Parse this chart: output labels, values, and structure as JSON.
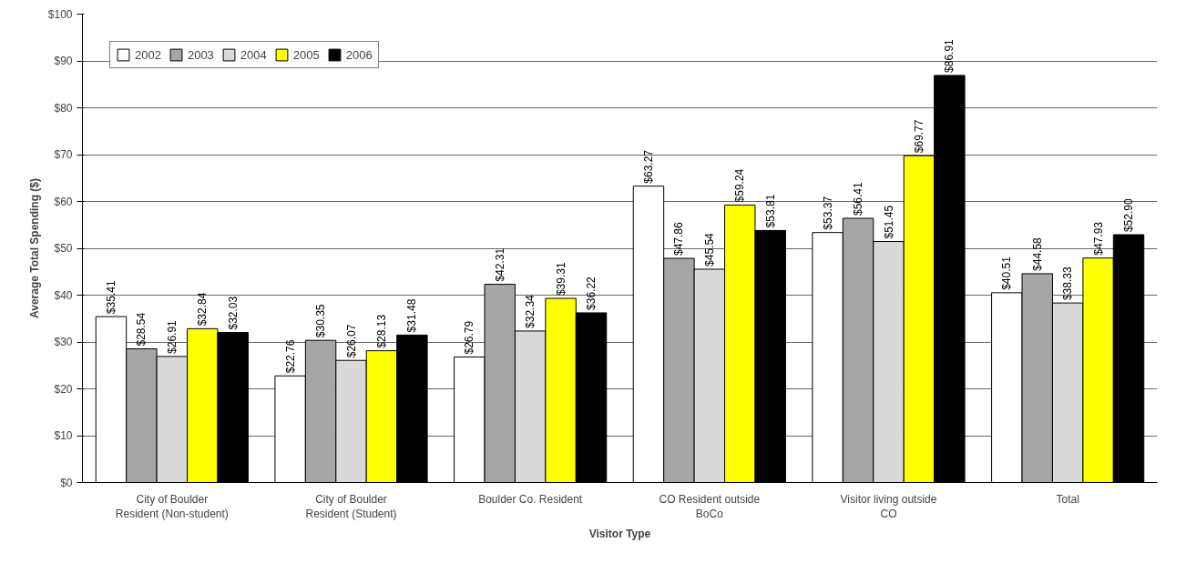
{
  "chart_data": {
    "type": "bar",
    "xlabel": "Visitor Type",
    "ylabel": "Average Total Spending ($)",
    "categories": [
      "City of Boulder Resident (Non-student)",
      "City of Boulder Resident (Student)",
      "Boulder Co. Resident",
      "CO Resident outside BoCo",
      "Visitor living outside CO",
      "Total"
    ],
    "series": [
      {
        "name": "2002",
        "color": "#ffffff",
        "values": [
          35.41,
          22.76,
          26.79,
          63.27,
          53.37,
          40.51
        ],
        "value_labels": [
          "$35.41",
          "$22.76",
          "$26.79",
          "$63.27",
          "$53.37",
          "$40.51"
        ]
      },
      {
        "name": "2003",
        "color": "#a6a6a6",
        "values": [
          28.54,
          30.35,
          42.31,
          47.86,
          56.41,
          44.58
        ],
        "value_labels": [
          "$28.54",
          "$30.35",
          "$42.31",
          "$47.86",
          "$56.41",
          "$44.58"
        ]
      },
      {
        "name": "2004",
        "color": "#d9d9d9",
        "values": [
          26.91,
          26.07,
          32.34,
          45.54,
          51.45,
          38.33
        ],
        "value_labels": [
          "$26.91",
          "$26.07",
          "$32.34",
          "$45.54",
          "$51.45",
          "$38.33"
        ]
      },
      {
        "name": "2005",
        "color": "#ffff00",
        "values": [
          32.84,
          28.13,
          39.31,
          59.24,
          69.77,
          47.93
        ],
        "value_labels": [
          "$32.84",
          "$28.13",
          "$39.31",
          "$59.24",
          "$69.77",
          "$47.93"
        ]
      },
      {
        "name": "2006",
        "color": "#000000",
        "values": [
          32.03,
          31.48,
          36.22,
          53.81,
          86.91,
          52.9
        ],
        "value_labels": [
          "$32.03",
          "$31.48",
          "$36.22",
          "$53.81",
          "$86.91",
          "$52.90"
        ]
      }
    ],
    "ylim": [
      0,
      100
    ],
    "yticks": [
      {
        "value": 0,
        "label": "$0"
      },
      {
        "value": 10,
        "label": "$10"
      },
      {
        "value": 20,
        "label": "$20"
      },
      {
        "value": 30,
        "label": "$30"
      },
      {
        "value": 40,
        "label": "$40"
      },
      {
        "value": 50,
        "label": "$50"
      },
      {
        "value": 60,
        "label": "$60"
      },
      {
        "value": 70,
        "label": "$70"
      },
      {
        "value": 80,
        "label": "$80"
      },
      {
        "value": 90,
        "label": "$90"
      },
      {
        "value": 100,
        "label": "$100"
      }
    ],
    "grid": "y",
    "legend": "top left"
  }
}
